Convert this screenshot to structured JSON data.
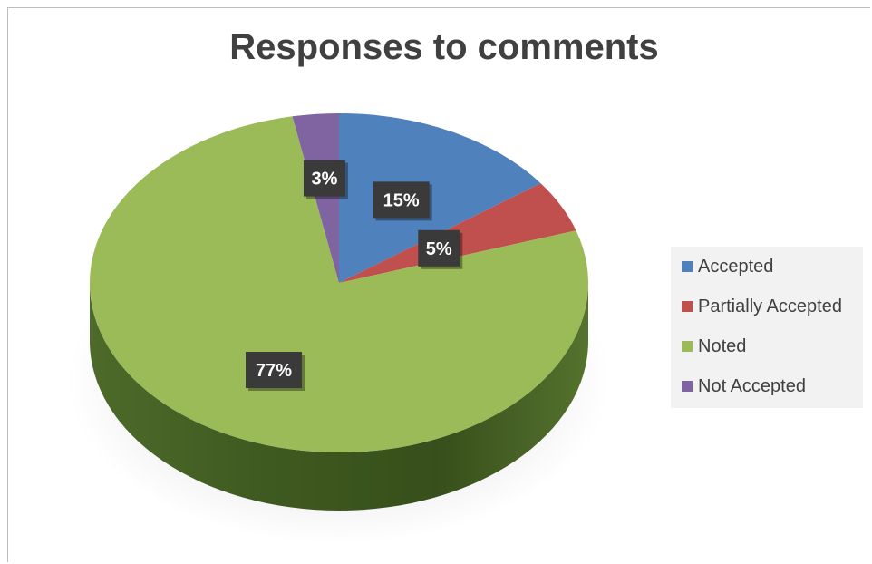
{
  "chart_data": {
    "type": "pie",
    "title": "Responses to comments",
    "legend_position": "right",
    "slices": [
      {
        "name": "Accepted",
        "value": 15,
        "label": "15%",
        "color": "#4f81bd"
      },
      {
        "name": "Partially Accepted",
        "value": 5,
        "label": "5%",
        "color": "#c0504d"
      },
      {
        "name": "Noted",
        "value": 77,
        "label": "77%",
        "color": "#9bbb59"
      },
      {
        "name": "Not Accepted",
        "value": 3,
        "label": "3%",
        "color": "#8064a2"
      }
    ]
  }
}
